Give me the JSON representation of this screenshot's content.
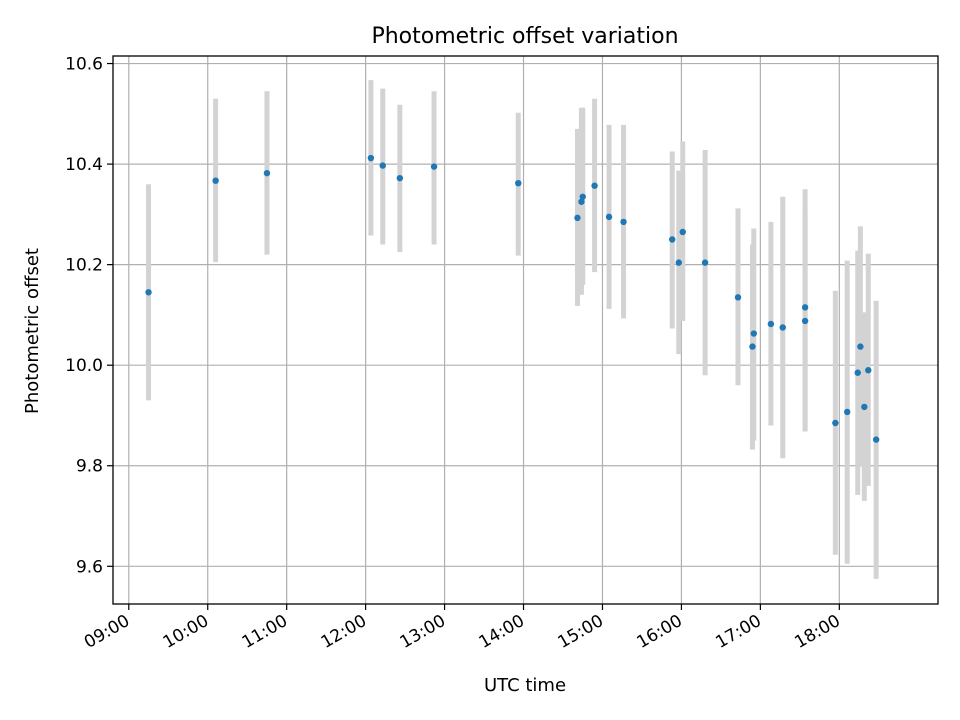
{
  "chart_data": {
    "type": "scatter",
    "title": "Photometric offset variation",
    "xlabel": "UTC time",
    "ylabel": "Photometric offset",
    "xlim": [
      "08:48",
      "19:15"
    ],
    "ylim": [
      9.525,
      10.615
    ],
    "x_ticks": [
      "09:00",
      "10:00",
      "11:00",
      "12:00",
      "13:00",
      "14:00",
      "15:00",
      "16:00",
      "17:00",
      "18:00"
    ],
    "y_ticks": [
      "9.6",
      "9.8",
      "10.0",
      "10.2",
      "10.4",
      "10.6"
    ],
    "grid": true,
    "legend": "none",
    "colors": {
      "points": "#1f77b4",
      "errorbars": "#d3d3d3",
      "grid": "#b0b0b0"
    },
    "points": [
      {
        "x": "09:15",
        "y": 10.145,
        "y_low": 9.93,
        "y_high": 10.36
      },
      {
        "x": "10:06",
        "y": 10.367,
        "y_low": 10.205,
        "y_high": 10.53
      },
      {
        "x": "10:45",
        "y": 10.382,
        "y_low": 10.22,
        "y_high": 10.545
      },
      {
        "x": "12:04",
        "y": 10.412,
        "y_low": 10.258,
        "y_high": 10.567
      },
      {
        "x": "12:13",
        "y": 10.397,
        "y_low": 10.24,
        "y_high": 10.55
      },
      {
        "x": "12:26",
        "y": 10.372,
        "y_low": 10.225,
        "y_high": 10.518
      },
      {
        "x": "12:52",
        "y": 10.395,
        "y_low": 10.24,
        "y_high": 10.545
      },
      {
        "x": "13:56",
        "y": 10.362,
        "y_low": 10.218,
        "y_high": 10.502
      },
      {
        "x": "14:41",
        "y": 10.293,
        "y_low": 10.118,
        "y_high": 10.47
      },
      {
        "x": "14:44",
        "y": 10.325,
        "y_low": 10.14,
        "y_high": 10.512
      },
      {
        "x": "14:45",
        "y": 10.335,
        "y_low": 10.16,
        "y_high": 10.512
      },
      {
        "x": "14:54",
        "y": 10.357,
        "y_low": 10.185,
        "y_high": 10.53
      },
      {
        "x": "15:05",
        "y": 10.295,
        "y_low": 10.112,
        "y_high": 10.478
      },
      {
        "x": "15:16",
        "y": 10.285,
        "y_low": 10.093,
        "y_high": 10.478
      },
      {
        "x": "15:53",
        "y": 10.25,
        "y_low": 10.073,
        "y_high": 10.425
      },
      {
        "x": "15:58",
        "y": 10.204,
        "y_low": 10.022,
        "y_high": 10.387
      },
      {
        "x": "16:01",
        "y": 10.265,
        "y_low": 10.088,
        "y_high": 10.445
      },
      {
        "x": "16:18",
        "y": 10.204,
        "y_low": 9.98,
        "y_high": 10.428
      },
      {
        "x": "16:43",
        "y": 10.135,
        "y_low": 9.96,
        "y_high": 10.312
      },
      {
        "x": "16:54",
        "y": 10.037,
        "y_low": 9.832,
        "y_high": 10.24
      },
      {
        "x": "16:55",
        "y": 10.063,
        "y_low": 9.85,
        "y_high": 10.272
      },
      {
        "x": "17:08",
        "y": 10.082,
        "y_low": 9.88,
        "y_high": 10.285
      },
      {
        "x": "17:17",
        "y": 10.075,
        "y_low": 9.815,
        "y_high": 10.335
      },
      {
        "x": "17:34",
        "y": 10.088,
        "y_low": 9.868,
        "y_high": 10.3
      },
      {
        "x": "17:34",
        "y": 10.115,
        "y_low": 9.88,
        "y_high": 10.35
      },
      {
        "x": "17:57",
        "y": 9.885,
        "y_low": 9.623,
        "y_high": 10.148
      },
      {
        "x": "18:06",
        "y": 9.907,
        "y_low": 9.605,
        "y_high": 10.208
      },
      {
        "x": "18:14",
        "y": 9.985,
        "y_low": 9.742,
        "y_high": 10.228
      },
      {
        "x": "18:16",
        "y": 10.037,
        "y_low": 9.798,
        "y_high": 10.276
      },
      {
        "x": "18:19",
        "y": 9.917,
        "y_low": 9.73,
        "y_high": 10.105
      },
      {
        "x": "18:22",
        "y": 9.99,
        "y_low": 9.76,
        "y_high": 10.222
      },
      {
        "x": "18:28",
        "y": 9.852,
        "y_low": 9.575,
        "y_high": 10.128
      }
    ]
  }
}
